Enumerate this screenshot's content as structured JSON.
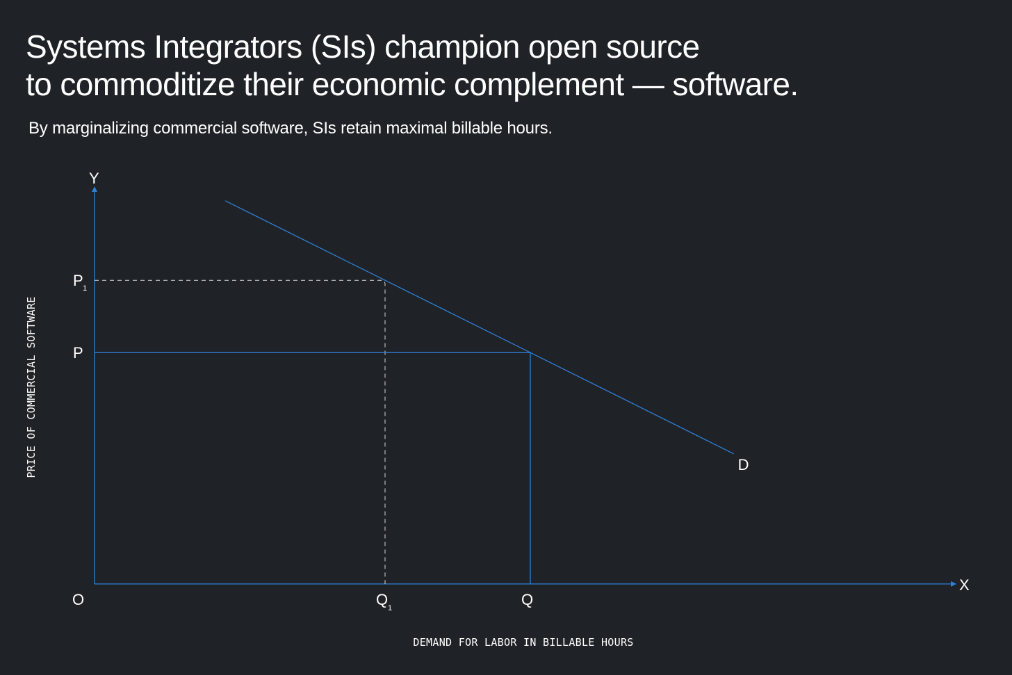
{
  "header": {
    "title_line1": "Systems Integrators (SIs) champion open source",
    "title_line2": "to commoditize their economic complement — software.",
    "subtitle": "By marginalizing commercial software, SIs retain maximal billable hours."
  },
  "colors": {
    "background": "#1f2226",
    "accent_line": "#2f7fd6",
    "text": "#ffffff",
    "dashed_line": "#d8d8d8"
  },
  "chart_data": {
    "type": "line",
    "xlabel": "DEMAND FOR LABOR IN BILLABLE HOURS",
    "ylabel": "PRICE OF COMMERCIAL SOFTWARE",
    "x_axis_letter": "X",
    "y_axis_letter": "Y",
    "origin_label": "O",
    "xlim": [
      0,
      12
    ],
    "ylim": [
      0,
      5.5
    ],
    "grid": false,
    "series": [
      {
        "name": "D",
        "x": [
          1.8,
          8.8
        ],
        "y": [
          5.3,
          1.8
        ]
      }
    ],
    "points": [
      {
        "x_label": "Q",
        "x_sub": "1",
        "y_label": "P",
        "y_sub": "1",
        "x": 4.0,
        "y": 4.2,
        "line_style": "dashed"
      },
      {
        "x_label": "Q",
        "x_sub": "",
        "y_label": "P",
        "y_sub": "",
        "x": 6.0,
        "y": 3.2,
        "line_style": "solid"
      }
    ]
  }
}
